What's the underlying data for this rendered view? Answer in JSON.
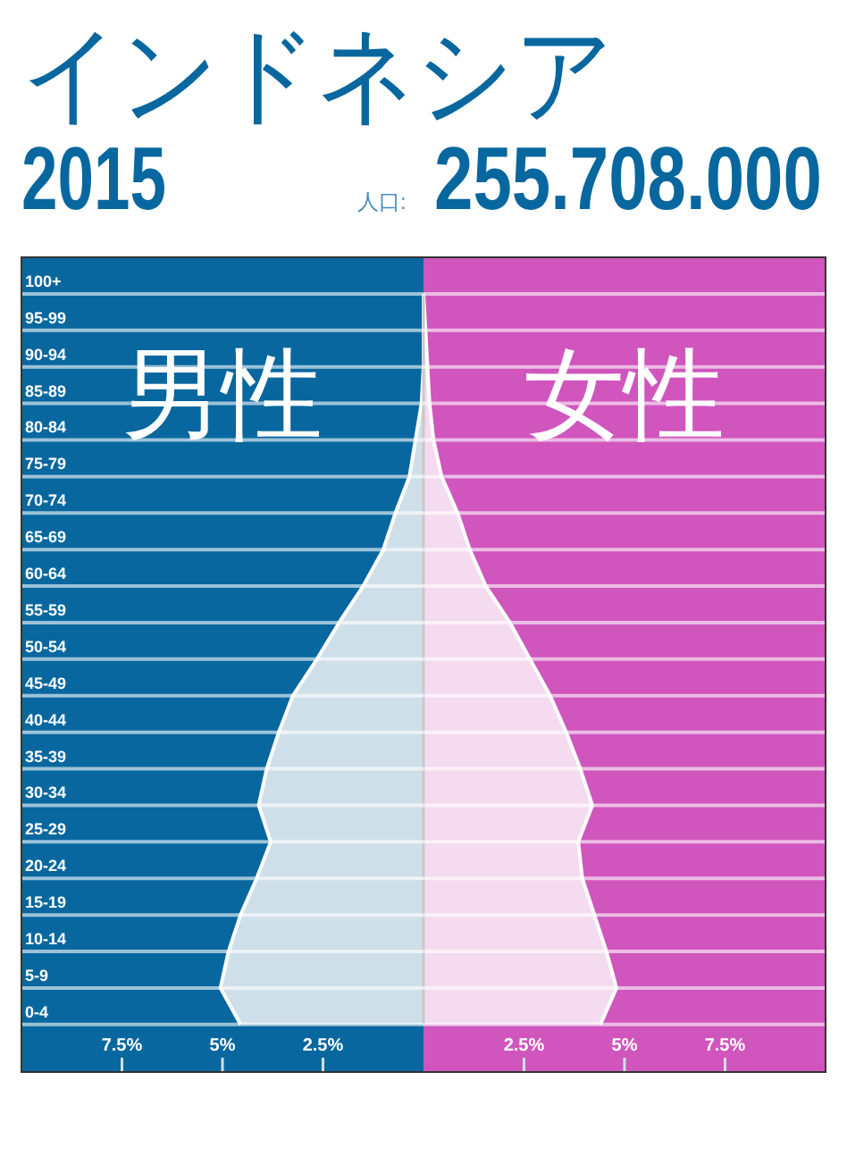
{
  "chart_data": {
    "type": "area",
    "orientation": "horizontal",
    "title": "インドネシア",
    "subtitle": "2015",
    "annotations": [
      "人口:",
      "255.708.000"
    ],
    "categories": [
      "100+",
      "95-99",
      "90-94",
      "85-89",
      "80-84",
      "75-79",
      "70-74",
      "65-69",
      "60-64",
      "55-59",
      "50-54",
      "45-49",
      "40-44",
      "35-39",
      "30-34",
      "25-29",
      "20-24",
      "15-19",
      "10-14",
      "5-9",
      "0-4"
    ],
    "series": [
      {
        "name": "男性",
        "color": "#cfdfea",
        "values": [
          0,
          0,
          0,
          -0.05,
          -0.2,
          -0.35,
          -0.7,
          -1.0,
          -1.5,
          -2.1,
          -2.65,
          -3.25,
          -3.6,
          -3.9,
          -4.1,
          -3.8,
          -4.15,
          -4.55,
          -4.85,
          -5.05,
          -4.55
        ]
      },
      {
        "name": "女性",
        "color": "#f5dbef",
        "values": [
          0,
          0.05,
          0.1,
          0.15,
          0.25,
          0.45,
          0.85,
          1.15,
          1.55,
          2.15,
          2.65,
          3.15,
          3.55,
          3.9,
          4.2,
          3.85,
          3.95,
          4.25,
          4.55,
          4.8,
          4.4
        ]
      }
    ],
    "xlim": [
      -10,
      10
    ],
    "xticks": [
      {
        "value": -7.5,
        "label": "7.5%"
      },
      {
        "value": -5,
        "label": "5%"
      },
      {
        "value": -2.5,
        "label": "2.5%"
      },
      {
        "value": 2.5,
        "label": "2.5%"
      },
      {
        "value": 5,
        "label": "5%"
      },
      {
        "value": 7.5,
        "label": "7.5%"
      }
    ],
    "grid": "y"
  }
}
